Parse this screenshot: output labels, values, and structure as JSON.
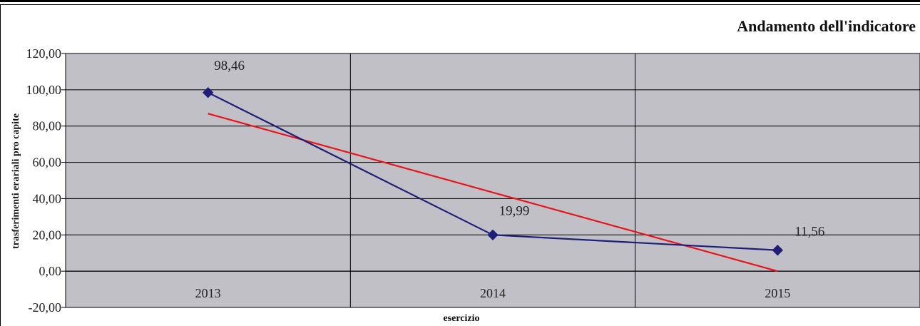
{
  "chart_data": {
    "type": "line",
    "title": "Andamento dell'indicatore",
    "xlabel": "esercizio",
    "ylabel": "trasferimenti erariali pro capite",
    "categories": [
      "2013",
      "2014",
      "2015"
    ],
    "ylim": [
      -20,
      120
    ],
    "yticks": [
      "120,00",
      "100,00",
      "80,00",
      "60,00",
      "40,00",
      "20,00",
      "0,00",
      "-20,00"
    ],
    "grid": true,
    "series": [
      {
        "values": [
          98.46,
          19.99,
          11.56
        ],
        "data_labels": [
          "98,46",
          "19,99",
          "11,56"
        ],
        "color": "#1f1f7a",
        "marker": "diamond"
      },
      {
        "values": [
          86.86,
          43.41,
          0.0
        ],
        "color": "#e8141b",
        "trendline": true
      }
    ],
    "plot_background": "#c0c0c6"
  }
}
